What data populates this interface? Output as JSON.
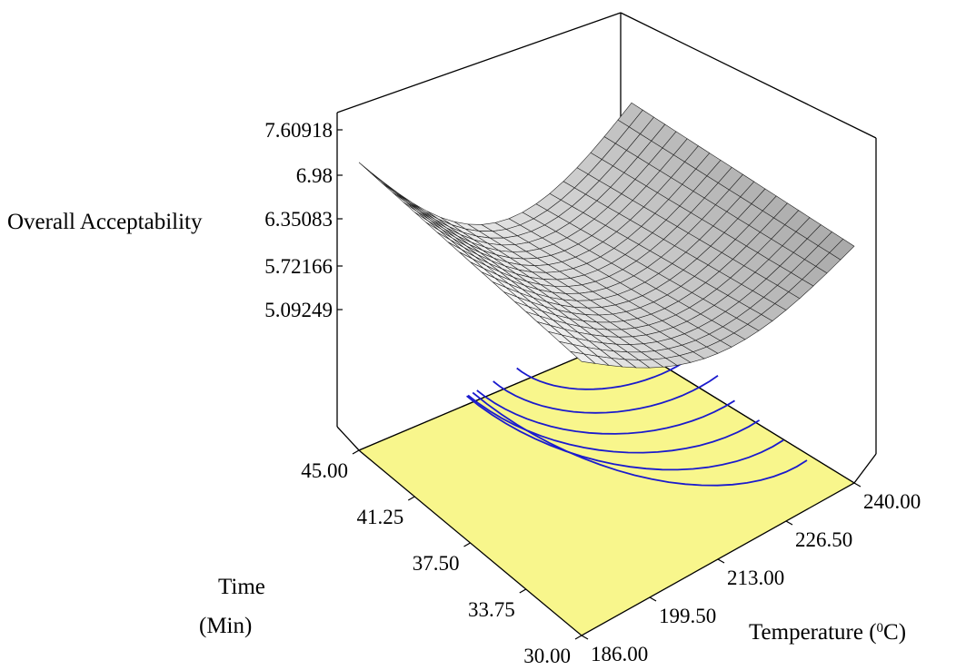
{
  "chart_data": {
    "type": "surface3d",
    "z_axis": {
      "label": "Overall Acceptability",
      "ticks": [
        "7.60918",
        "6.98",
        "6.35083",
        "5.72166",
        "5.09249"
      ],
      "range": [
        5.09249,
        7.60918
      ]
    },
    "x_axis": {
      "label_time": "Time",
      "label_min": "(Min)",
      "ticks": [
        "30.00",
        "33.75",
        "37.50",
        "41.25",
        "45.00"
      ],
      "range": [
        30,
        45
      ]
    },
    "y_axis": {
      "label_temp": "Temperature (",
      "label_super": "0",
      "label_unit": "C)",
      "ticks": [
        "186.00",
        "199.50",
        "213.00",
        "226.50",
        "240.00"
      ],
      "range": [
        186,
        240
      ]
    },
    "surface_corners": [
      {
        "time": 45.0,
        "temperature": 186.0,
        "acceptability": 7.60918
      },
      {
        "time": 30.0,
        "temperature": 186.0,
        "acceptability": 6.35
      },
      {
        "time": 30.0,
        "temperature": 240.0,
        "acceptability": 6.55
      },
      {
        "time": 45.0,
        "temperature": 240.0,
        "acceptability": 6.85
      }
    ],
    "surface_grid": "21x21 mesh, grey shaded",
    "contour_plane_color": "#f8f68c",
    "contour_line_color": "#1a1acd",
    "contour_count": 6
  }
}
